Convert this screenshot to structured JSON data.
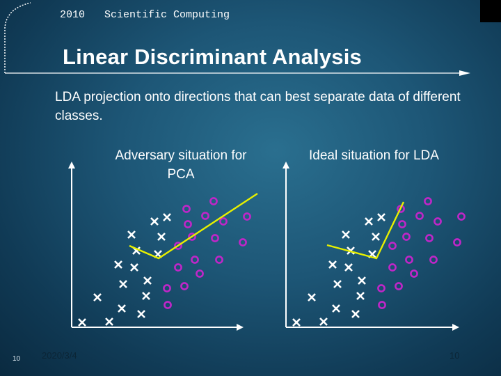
{
  "header": {
    "year": "2010",
    "course": "Scientific Computing"
  },
  "slide": {
    "title": "Linear Discriminant Analysis",
    "body": "LDA projection onto directions that can best separate data of different classes."
  },
  "panels": [
    {
      "caption": "Adversary situation for PCA"
    },
    {
      "caption": "Ideal situation for LDA"
    }
  ],
  "colors": {
    "cross": "#ffffff",
    "circle": "#c026c8",
    "projection_line": "#e8f000",
    "axis": "#ffffff"
  },
  "markers": {
    "cross_icon": "x-mark",
    "circle_icon": "o-mark"
  },
  "footer": {
    "slide_no": "10",
    "date": "2020/3/4",
    "page": "10"
  }
}
